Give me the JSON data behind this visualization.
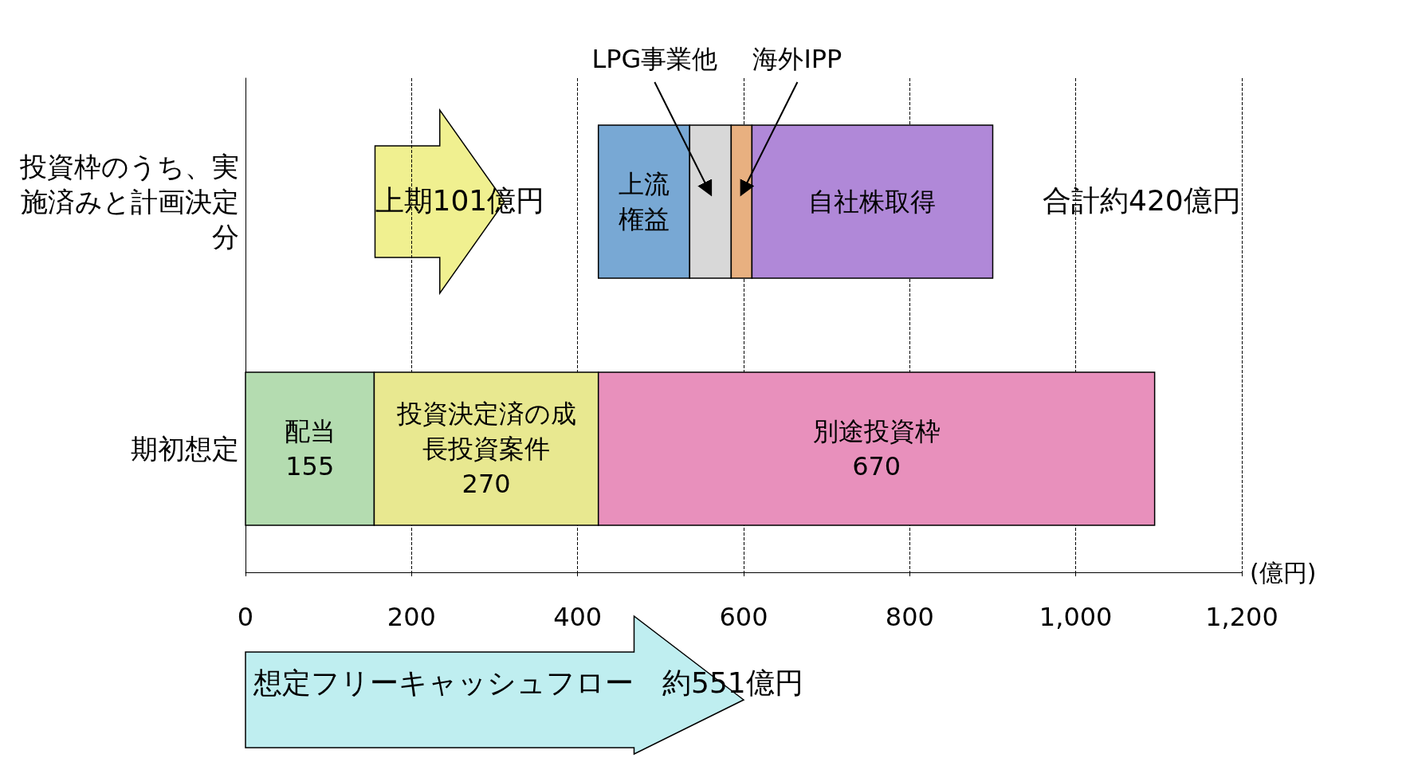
{
  "chart_data": {
    "type": "bar",
    "orientation": "horizontal",
    "categories": [
      "投資枠のうち、実施済みと計画決定分",
      "期初想定"
    ],
    "series": [
      {
        "name": "配当",
        "color": "#b4dcb0",
        "values": [
          null,
          155
        ],
        "base": [
          null,
          0
        ],
        "value_labels": [
          null,
          "155"
        ]
      },
      {
        "name": "投資決定済の成長投資案件",
        "color": "#e8e890",
        "values": [
          null,
          270
        ],
        "base": [
          null,
          155
        ],
        "value_labels": [
          null,
          "270"
        ]
      },
      {
        "name": "別途投資枠",
        "color": "#e890bc",
        "values": [
          null,
          670
        ],
        "base": [
          null,
          425
        ],
        "value_labels": [
          null,
          "670"
        ]
      },
      {
        "name": "上流権益",
        "color": "#78a8d4",
        "values": [
          110,
          null
        ],
        "base": [
          425,
          null
        ]
      },
      {
        "name": "LPG事業他",
        "color": "#d8d8d8",
        "values": [
          50,
          null
        ],
        "base": [
          535,
          null
        ]
      },
      {
        "name": "海外IPP",
        "color": "#e8b080",
        "values": [
          25,
          null
        ],
        "base": [
          585,
          null
        ]
      },
      {
        "name": "自社株取得",
        "color": "#b088d8",
        "values": [
          290,
          null
        ],
        "base": [
          610,
          null
        ]
      }
    ],
    "xlim": [
      0,
      1200
    ],
    "xticks": [
      0,
      200,
      400,
      600,
      800,
      {
        "value": 1000,
        "label": "1,000"
      },
      {
        "value": 1200,
        "label": "1,200"
      }
    ],
    "xlabel": "(億円)",
    "grid": "x",
    "legend": false,
    "annotations": [
      "上期101億円",
      "合計約420億円",
      "想定フリーキャッシュフロー　約551億円"
    ]
  }
}
